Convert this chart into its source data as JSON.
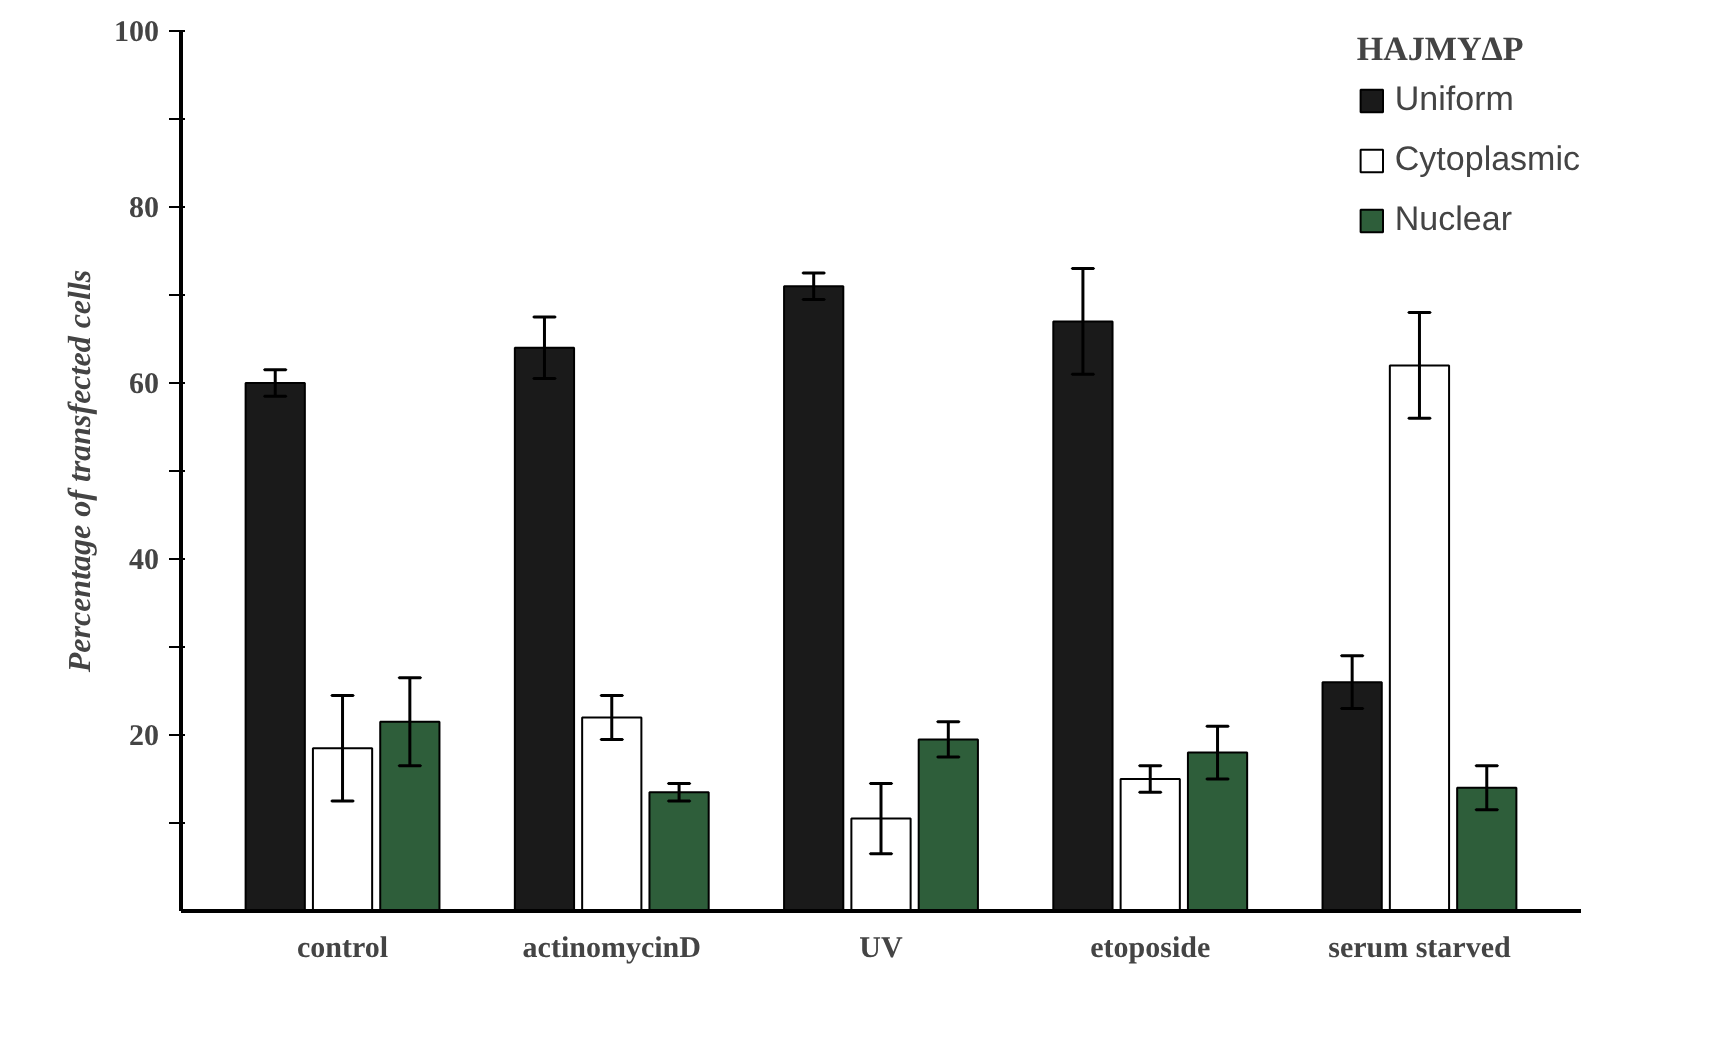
{
  "chart_data": {
    "type": "bar",
    "ylabel": "Percentage of transfected cells",
    "legend_title": "HAJMYΔP",
    "categories": [
      "control",
      "actinomycinD",
      "UV",
      "etoposide",
      "serum starved"
    ],
    "series": [
      {
        "name": "Uniform",
        "color": "#1a1a1a",
        "values": [
          60,
          64,
          71,
          67,
          26
        ],
        "errors": [
          1.5,
          3.5,
          1.5,
          6,
          3
        ]
      },
      {
        "name": "Cytoplasmic",
        "color": "#ffffff",
        "values": [
          18.5,
          22,
          10.5,
          15,
          62
        ],
        "errors": [
          6,
          2.5,
          4,
          1.5,
          6
        ]
      },
      {
        "name": "Nuclear",
        "color": "#2e5e3a",
        "values": [
          21.5,
          13.5,
          19.5,
          18,
          14
        ],
        "errors": [
          5,
          1,
          2,
          3,
          2.5
        ]
      }
    ],
    "ylim": [
      0,
      100
    ],
    "yticks": [
      {
        "value": 10,
        "label": null
      },
      20,
      {
        "value": 30,
        "label": null
      },
      40,
      {
        "value": 50,
        "label": null
      },
      60,
      {
        "value": 70,
        "label": null
      },
      80,
      {
        "value": 90,
        "label": null
      },
      100
    ],
    "grid": false,
    "legend": "top right"
  }
}
